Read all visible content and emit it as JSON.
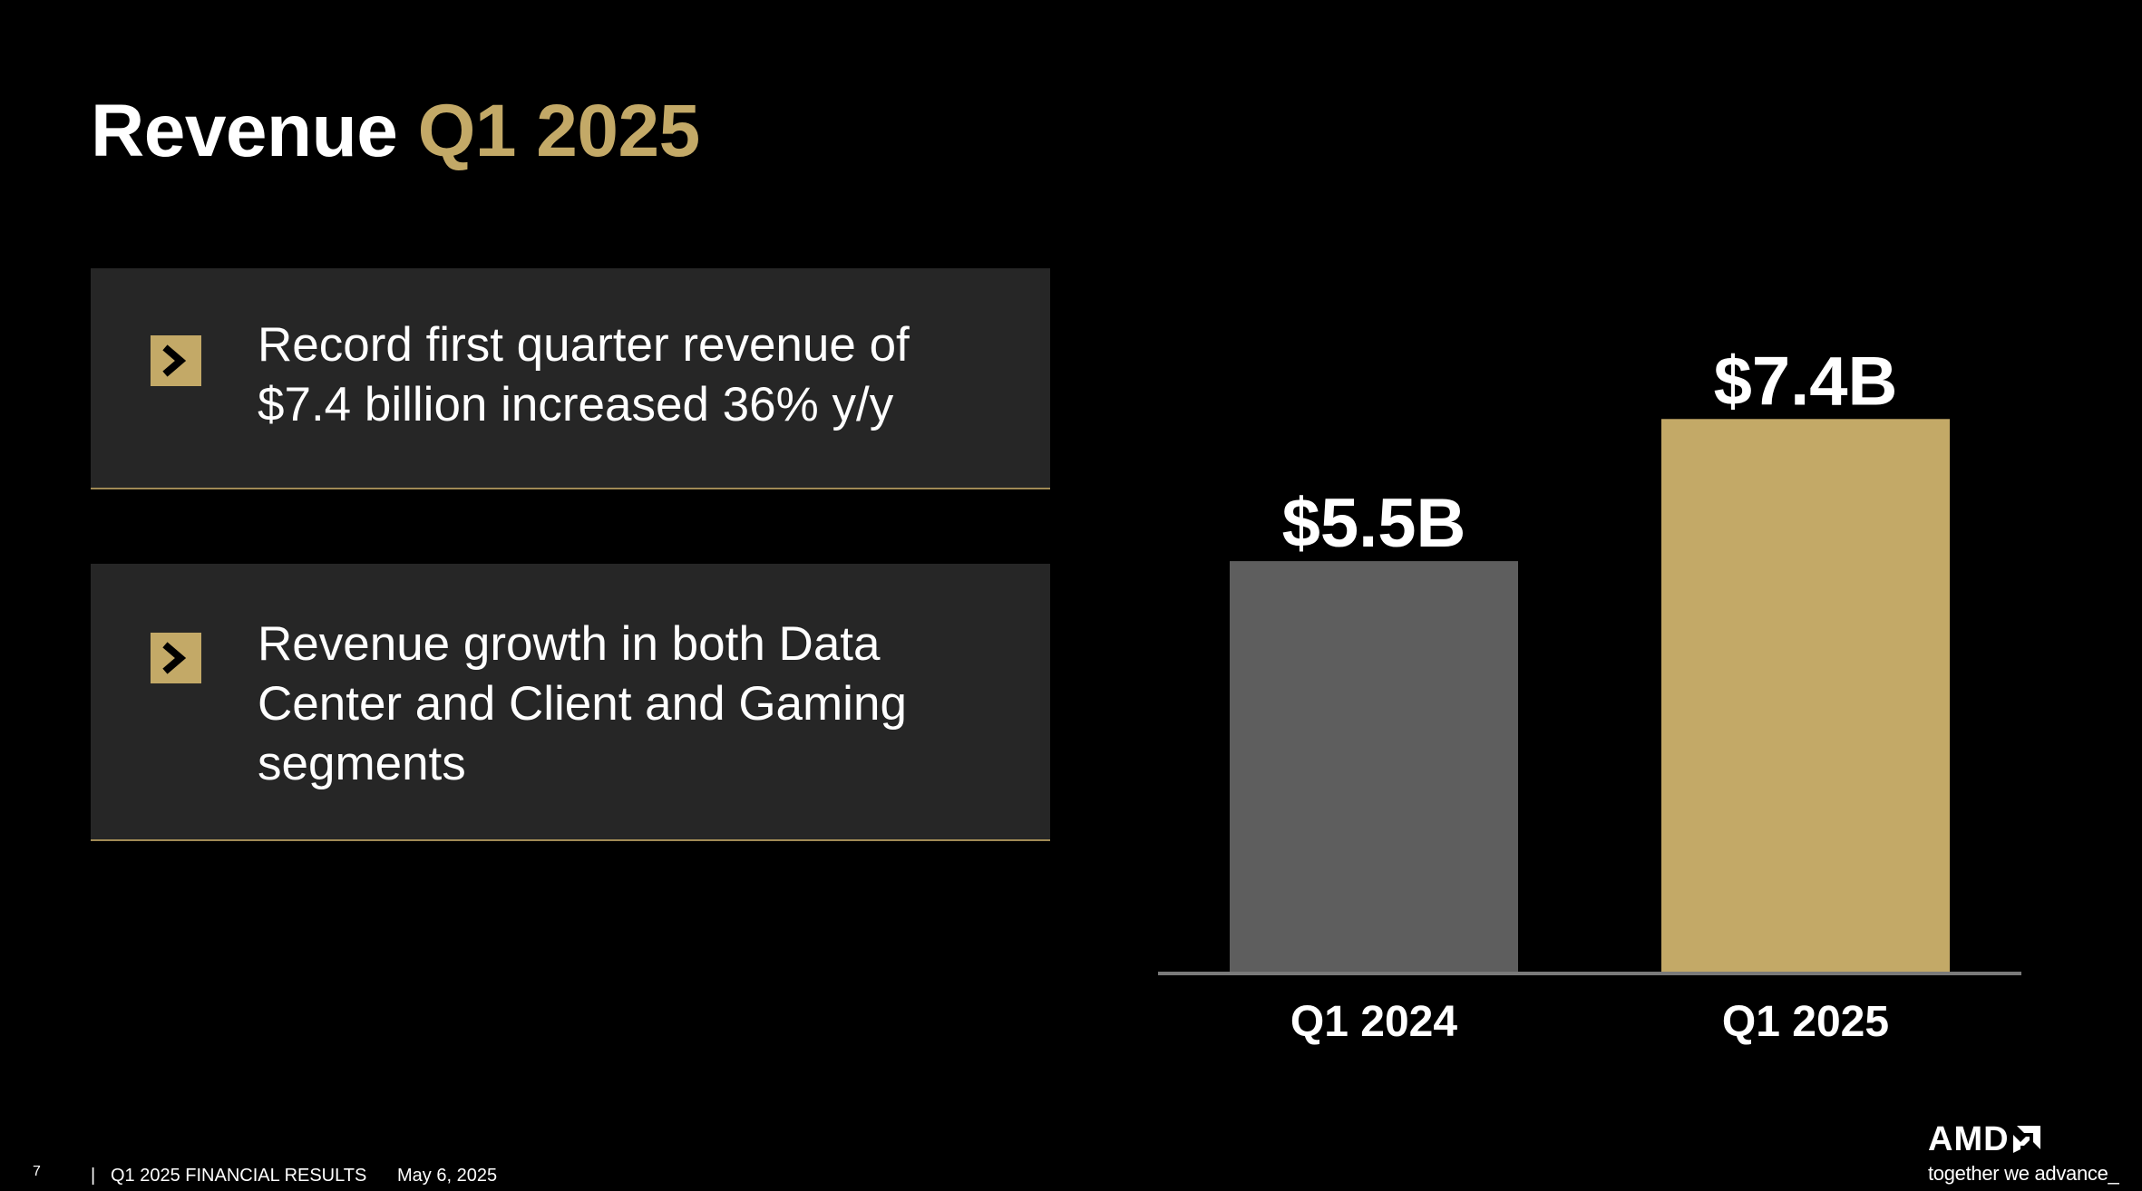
{
  "title": {
    "main": "Revenue",
    "accent": "Q1 2025"
  },
  "bullets": [
    {
      "text": "Record first quarter revenue of $7.4 billion increased 36% y/y",
      "icon": "chevron-right-icon"
    },
    {
      "text": "Revenue growth in both Data Center and Client and Gaming segments",
      "icon": "chevron-right-icon"
    }
  ],
  "chart_data": {
    "type": "bar",
    "categories": [
      "Q1 2024",
      "Q1 2025"
    ],
    "values": [
      5.5,
      7.4
    ],
    "data_labels": [
      "$5.5B",
      "$7.4B"
    ],
    "colors": [
      "#5e5e5e",
      "#c3a967"
    ],
    "unit": "B",
    "ylim": [
      0,
      8.3
    ],
    "grid": false,
    "xlabel": "",
    "ylabel": ""
  },
  "footer": {
    "page_number": "7",
    "separator": "|",
    "report_title": "Q1 2025 FINANCIAL RESULTS",
    "date": "May 6, 2025"
  },
  "logo": {
    "wordmark": "AMD",
    "icon": "amd-arrow-icon",
    "tagline": "together we advance_"
  },
  "colors": {
    "background": "#000000",
    "accent_gold": "#c3a967",
    "card_bg": "#262626",
    "bar_gray": "#5e5e5e"
  }
}
